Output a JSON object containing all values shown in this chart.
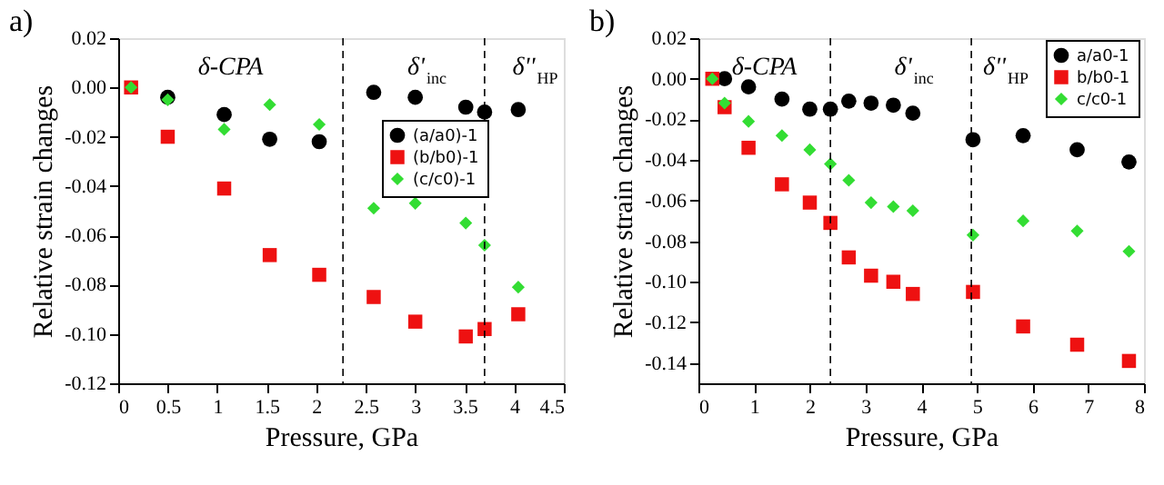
{
  "chart_data": [
    {
      "type": "scatter",
      "title": "a)",
      "xlabel": "Pressure, GPa",
      "ylabel": "Relative strain changes",
      "x": [
        0.13,
        0.5,
        1.07,
        1.53,
        2.03,
        2.58,
        3.0,
        3.51,
        3.7,
        4.04
      ],
      "series": [
        {
          "name": "(a/a0)-1",
          "color": "#000000",
          "marker": "circle",
          "values": [
            null,
            -0.004,
            -0.011,
            -0.021,
            -0.022,
            -0.002,
            -0.004,
            -0.008,
            -0.01,
            -0.009
          ]
        },
        {
          "name": "(b/b0)-1",
          "color": "#ee1111",
          "marker": "square",
          "values": [
            0,
            -0.02,
            -0.041,
            -0.068,
            -0.076,
            -0.085,
            -0.095,
            -0.101,
            -0.098,
            -0.092
          ]
        },
        {
          "name": "(c/c0)-1",
          "color": "#33dd33",
          "marker": "diamond",
          "values": [
            0,
            -0.005,
            -0.017,
            -0.007,
            -0.015,
            -0.049,
            -0.047,
            -0.055,
            -0.064,
            -0.081
          ]
        }
      ],
      "xlim": [
        0,
        4.5
      ],
      "xticks": [
        0,
        0.5,
        1,
        1.5,
        2,
        2.5,
        3,
        3.5,
        4,
        4.5
      ],
      "ylim": [
        -0.12,
        0.02
      ],
      "yticks": [
        {
          "value": -0.12,
          "label": "-0.12"
        },
        {
          "value": -0.1,
          "label": "-0.10"
        },
        {
          "value": -0.08,
          "label": "-0.08"
        },
        {
          "value": -0.06,
          "label": "-0.06"
        },
        {
          "value": -0.04,
          "label": "-0.04"
        },
        {
          "value": -0.02,
          "label": "-0.02"
        },
        {
          "value": 0,
          "label": "0.00"
        },
        {
          "value": 0.02,
          "label": "0.02"
        }
      ],
      "ref_lines": [
        {
          "axis": "x",
          "value": 2.27,
          "line_style": "dashed",
          "color": "#000000"
        },
        {
          "axis": "x",
          "value": 3.7,
          "line_style": "dashed",
          "color": "#000000"
        }
      ],
      "annotations": [
        "δ-CPA",
        "δ'$_{inc}$",
        "δ''$_{HP}$"
      ],
      "legend": "right",
      "grid": false
    },
    {
      "type": "scatter",
      "title": "b)",
      "xlabel": "Pressure, GPa",
      "ylabel": "Relative strain changes",
      "x": [
        0.25,
        0.47,
        0.9,
        1.5,
        2.0,
        2.37,
        2.7,
        3.1,
        3.5,
        3.85,
        4.93,
        5.83,
        6.8,
        7.73
      ],
      "series": [
        {
          "name": "a/a0-1",
          "color": "#000000",
          "marker": "circle",
          "values": [
            null,
            0.0,
            -0.004,
            -0.01,
            -0.015,
            -0.015,
            -0.011,
            -0.012,
            -0.013,
            -0.017,
            -0.03,
            -0.028,
            -0.035,
            -0.041
          ]
        },
        {
          "name": "b/b0-1",
          "color": "#ee1111",
          "marker": "square",
          "values": [
            0,
            -0.014,
            -0.034,
            -0.052,
            -0.061,
            -0.071,
            -0.088,
            -0.097,
            -0.1,
            -0.106,
            -0.105,
            -0.122,
            -0.131,
            -0.139
          ]
        },
        {
          "name": "c/c0-1",
          "color": "#33dd33",
          "marker": "diamond",
          "values": [
            0,
            -0.012,
            -0.021,
            -0.028,
            -0.035,
            -0.042,
            -0.05,
            -0.061,
            -0.063,
            -0.065,
            -0.077,
            -0.07,
            -0.075,
            -0.085
          ]
        }
      ],
      "xlim": [
        0,
        8
      ],
      "xticks": [
        0,
        1,
        2,
        3,
        4,
        5,
        6,
        7,
        8
      ],
      "ylim": [
        -0.15,
        0.02
      ],
      "yticks": [
        {
          "value": -0.14,
          "label": "-0.14"
        },
        {
          "value": -0.12,
          "label": "-0.12"
        },
        {
          "value": -0.1,
          "label": "-0.10"
        },
        {
          "value": -0.08,
          "label": "-0.08"
        },
        {
          "value": -0.06,
          "label": "-0.06"
        },
        {
          "value": -0.04,
          "label": "-0.04"
        },
        {
          "value": -0.02,
          "label": "-0.02"
        },
        {
          "value": 0,
          "label": "0.00"
        },
        {
          "value": 0.02,
          "label": "0.02"
        }
      ],
      "ref_lines": [
        {
          "axis": "x",
          "value": 2.37,
          "line_style": "dashed",
          "color": "#000000"
        },
        {
          "axis": "x",
          "value": 4.9,
          "line_style": "dashed",
          "color": "#000000"
        }
      ],
      "annotations": [
        "δ-CPA",
        "δ'$_{inc}$",
        "δ''$_{HP}$"
      ],
      "legend": "top right",
      "grid": false
    }
  ]
}
